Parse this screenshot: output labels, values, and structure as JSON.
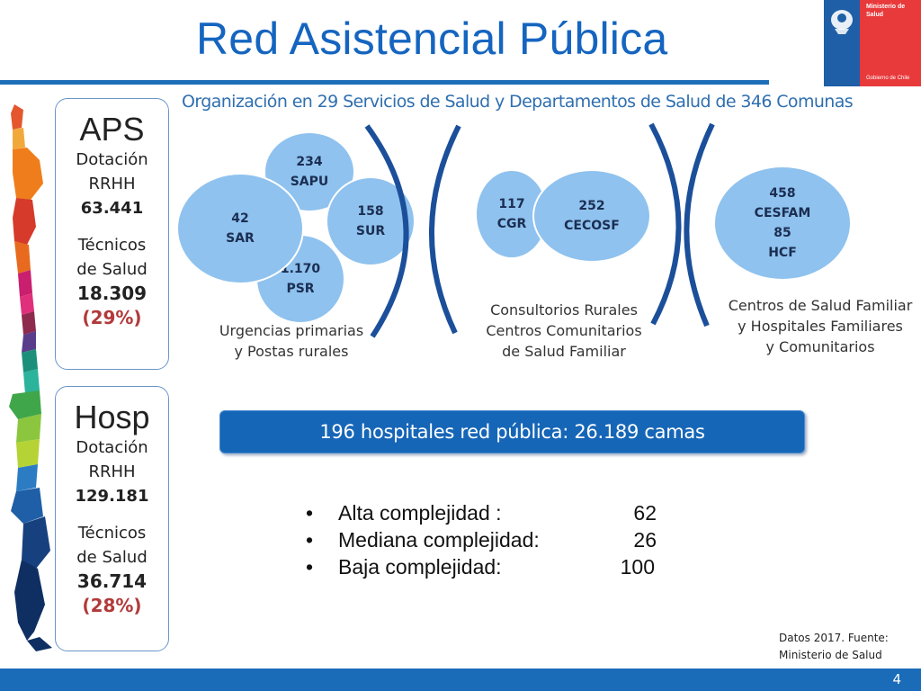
{
  "header": {
    "title": "Red Asistencial Pública",
    "logo": {
      "line1": "Ministerio de",
      "line2": "Salud",
      "footer": "Gobierno de Chile"
    }
  },
  "subtitle": "Organización en 29 Servicios de Salud y Departamentos de Salud de 346 Comunas",
  "aps": {
    "title": "APS",
    "l1": "Dotación",
    "l2": "RRHH",
    "dotacion": "63.441",
    "l3": "Técnicos",
    "l4": "de Salud",
    "tecnicos": "18.309",
    "pct": "(29%)"
  },
  "hosp": {
    "title": "Hosp",
    "l1": "Dotación",
    "l2": "RRHH",
    "dotacion": "129.181",
    "l3": "Técnicos",
    "l4": "de Salud",
    "tecnicos": "36.714",
    "pct": "(28%)"
  },
  "group1": {
    "sapu": {
      "num": "234",
      "label": "SAPU"
    },
    "sar": {
      "num": "42",
      "label": "SAR"
    },
    "sur": {
      "num": "158",
      "label": "SUR"
    },
    "psr": {
      "num": "1.170",
      "label": "PSR"
    },
    "caption": [
      "Urgencias primarias",
      "y Postas rurales"
    ]
  },
  "group2": {
    "cgr": {
      "num": "117",
      "label": "CGR"
    },
    "cecosf": {
      "num": "252",
      "label": "CECOSF"
    },
    "caption": [
      "Consultorios Rurales",
      "Centros Comunitarios",
      "de Salud Familiar"
    ]
  },
  "group3": {
    "cesfam_num": "458",
    "cesfam_label": "CESFAM",
    "hcf_num": "85",
    "hcf_label": "HCF",
    "caption": [
      "Centros de Salud Familiar",
      "y Hospitales Familiares",
      "y Comunitarios"
    ]
  },
  "hospitals": {
    "banner": "196 hospitales red pública: 26.189 camas",
    "items": [
      {
        "bullet": "•",
        "label": "Alta complejidad :",
        "value": "62"
      },
      {
        "bullet": "•",
        "label": "Mediana complejidad:",
        "value": "26"
      },
      {
        "bullet": "•",
        "label": "Baja complejidad:",
        "value": "100"
      }
    ]
  },
  "source": [
    "Datos 2017. Fuente:",
    "Ministerio de Salud"
  ],
  "page_number": "4",
  "colors": {
    "title": "#1565c0",
    "circle": "#8fc2ee",
    "banner": "#1666b7",
    "footer": "#1a6bb8",
    "percent": "#b23a3a"
  }
}
